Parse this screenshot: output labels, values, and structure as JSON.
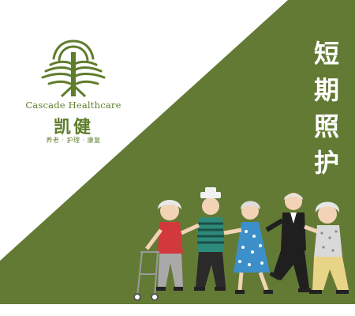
{
  "brand": {
    "name_en": "Cascade Healthcare",
    "name_cn": "凯健",
    "tagline": "养老 · 护理 · 康复"
  },
  "title": {
    "chars": [
      "短",
      "期",
      "照",
      "护"
    ]
  },
  "colors": {
    "olive": "#637a34",
    "brand_green": "#5f7d2c",
    "background": "#ffffff"
  },
  "illustration": {
    "subject": "elderly people dancing in a conga line",
    "icon": "dancing-seniors-illustration"
  }
}
